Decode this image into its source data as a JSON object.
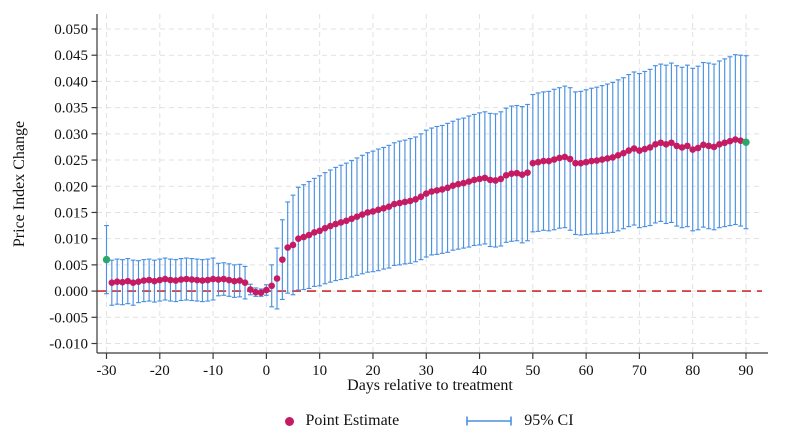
{
  "figure": {
    "y_axis_label": "Price Index Change",
    "x_axis_label": "Days relative to treatment",
    "legend": {
      "point_label": "Point Estimate",
      "ci_label": "95% CI"
    }
  },
  "colors": {
    "point": "#c51b62",
    "endpoint": "#2aa86b",
    "ci": "#4a90e2",
    "zero_line": "#d02a2a",
    "grid": "#e1e1e1",
    "axis": "#3a3a3a",
    "tick_text": "#111111"
  },
  "chart_data": {
    "type": "scatter",
    "subtype": "event-study with 95% confidence-interval error bars",
    "title": "",
    "xlabel": "Days relative to treatment",
    "ylabel": "Price Index Change",
    "x_range": [
      -30,
      90
    ],
    "ylim": [
      -0.01,
      0.05
    ],
    "x_ticks": [
      -30,
      -20,
      -10,
      0,
      10,
      20,
      30,
      40,
      50,
      60,
      70,
      80,
      90
    ],
    "y_ticks": [
      -0.01,
      -0.005,
      0.0,
      0.005,
      0.01,
      0.015,
      0.02,
      0.025,
      0.03,
      0.035,
      0.04,
      0.045,
      0.05
    ],
    "y_tick_labels": [
      "-0.010",
      "-0.005",
      "0.000",
      "0.005",
      "0.010",
      "0.015",
      "0.020",
      "0.025",
      "0.030",
      "0.035",
      "0.040",
      "0.045",
      "0.050"
    ],
    "grid": true,
    "grid_style": "dashed",
    "legend_position": "bottom-center",
    "zero_reference_line": 0.0,
    "endpoint_marker_days": [
      -30,
      90
    ],
    "series": [
      {
        "name": "Point Estimate",
        "days": [
          -30,
          -29,
          -28,
          -27,
          -26,
          -25,
          -24,
          -23,
          -22,
          -21,
          -20,
          -19,
          -18,
          -17,
          -16,
          -15,
          -14,
          -13,
          -12,
          -11,
          -10,
          -9,
          -8,
          -7,
          -6,
          -5,
          -4,
          -3,
          -2,
          -1,
          0,
          1,
          2,
          3,
          4,
          5,
          6,
          7,
          8,
          9,
          10,
          11,
          12,
          13,
          14,
          15,
          16,
          17,
          18,
          19,
          20,
          21,
          22,
          23,
          24,
          25,
          26,
          27,
          28,
          29,
          30,
          31,
          32,
          33,
          34,
          35,
          36,
          37,
          38,
          39,
          40,
          41,
          42,
          43,
          44,
          45,
          46,
          47,
          48,
          49,
          50,
          51,
          52,
          53,
          54,
          55,
          56,
          57,
          58,
          59,
          60,
          61,
          62,
          63,
          64,
          65,
          66,
          67,
          68,
          69,
          70,
          71,
          72,
          73,
          74,
          75,
          76,
          77,
          78,
          79,
          80,
          81,
          82,
          83,
          84,
          85,
          86,
          87,
          88,
          89,
          90
        ],
        "values": [
          0.006,
          0.0016,
          0.0018,
          0.0017,
          0.0019,
          0.0016,
          0.0018,
          0.002,
          0.0021,
          0.0019,
          0.0021,
          0.0023,
          0.0021,
          0.002,
          0.0022,
          0.0023,
          0.0022,
          0.0021,
          0.002,
          0.0021,
          0.0023,
          0.0022,
          0.0023,
          0.0021,
          0.0019,
          0.002,
          0.0016,
          0.0003,
          -0.0002,
          -0.0003,
          0.0002,
          0.001,
          0.0024,
          0.006,
          0.0083,
          0.0088,
          0.01,
          0.0103,
          0.0107,
          0.0112,
          0.0115,
          0.012,
          0.0124,
          0.0128,
          0.0131,
          0.0134,
          0.0138,
          0.0142,
          0.0146,
          0.015,
          0.0152,
          0.0155,
          0.0158,
          0.0161,
          0.0166,
          0.0168,
          0.017,
          0.0172,
          0.0175,
          0.018,
          0.0186,
          0.019,
          0.0192,
          0.0194,
          0.0197,
          0.0201,
          0.0204,
          0.0206,
          0.0209,
          0.0212,
          0.0214,
          0.0216,
          0.0212,
          0.0211,
          0.0214,
          0.0221,
          0.0224,
          0.0225,
          0.0222,
          0.0226,
          0.0244,
          0.0246,
          0.0248,
          0.0248,
          0.0251,
          0.0254,
          0.0256,
          0.0252,
          0.0244,
          0.0244,
          0.0246,
          0.0248,
          0.0249,
          0.0251,
          0.0253,
          0.0255,
          0.0259,
          0.0263,
          0.0268,
          0.0272,
          0.0268,
          0.0271,
          0.0274,
          0.028,
          0.0283,
          0.028,
          0.0283,
          0.0277,
          0.0274,
          0.0277,
          0.027,
          0.0273,
          0.0279,
          0.0277,
          0.0275,
          0.028,
          0.0283,
          0.0286,
          0.0289,
          0.0287,
          0.0284
        ]
      },
      {
        "name": "95% CI",
        "ci_half_width": [
          0.0065,
          0.0043,
          0.0043,
          0.0043,
          0.0043,
          0.0043,
          0.004,
          0.004,
          0.004,
          0.004,
          0.004,
          0.004,
          0.004,
          0.004,
          0.004,
          0.004,
          0.004,
          0.004,
          0.004,
          0.004,
          0.004,
          0.0031,
          0.0031,
          0.0031,
          0.0031,
          0.0031,
          0.0031,
          0.001,
          0.0008,
          0.0007,
          0.001,
          0.004,
          0.0058,
          0.0076,
          0.0087,
          0.0095,
          0.0098,
          0.01,
          0.0102,
          0.0103,
          0.0105,
          0.0106,
          0.0107,
          0.0108,
          0.0109,
          0.011,
          0.0111,
          0.0112,
          0.0113,
          0.0114,
          0.0115,
          0.0116,
          0.0116,
          0.0117,
          0.0117,
          0.0118,
          0.0118,
          0.0119,
          0.0119,
          0.012,
          0.0121,
          0.0121,
          0.0122,
          0.0122,
          0.0123,
          0.0123,
          0.0124,
          0.0124,
          0.0125,
          0.0125,
          0.0126,
          0.0126,
          0.0127,
          0.0127,
          0.0128,
          0.0128,
          0.0129,
          0.0129,
          0.013,
          0.013,
          0.0131,
          0.0132,
          0.0132,
          0.0133,
          0.0134,
          0.0134,
          0.0135,
          0.0136,
          0.0136,
          0.0137,
          0.0138,
          0.0139,
          0.014,
          0.0141,
          0.0142,
          0.0143,
          0.0144,
          0.0144,
          0.0145,
          0.0146,
          0.0147,
          0.0148,
          0.0149,
          0.015,
          0.015,
          0.0151,
          0.0152,
          0.0153,
          0.0153,
          0.0154,
          0.0155,
          0.0156,
          0.0157,
          0.0158,
          0.0158,
          0.0159,
          0.016,
          0.0161,
          0.0162,
          0.0163,
          0.0165
        ]
      }
    ]
  }
}
